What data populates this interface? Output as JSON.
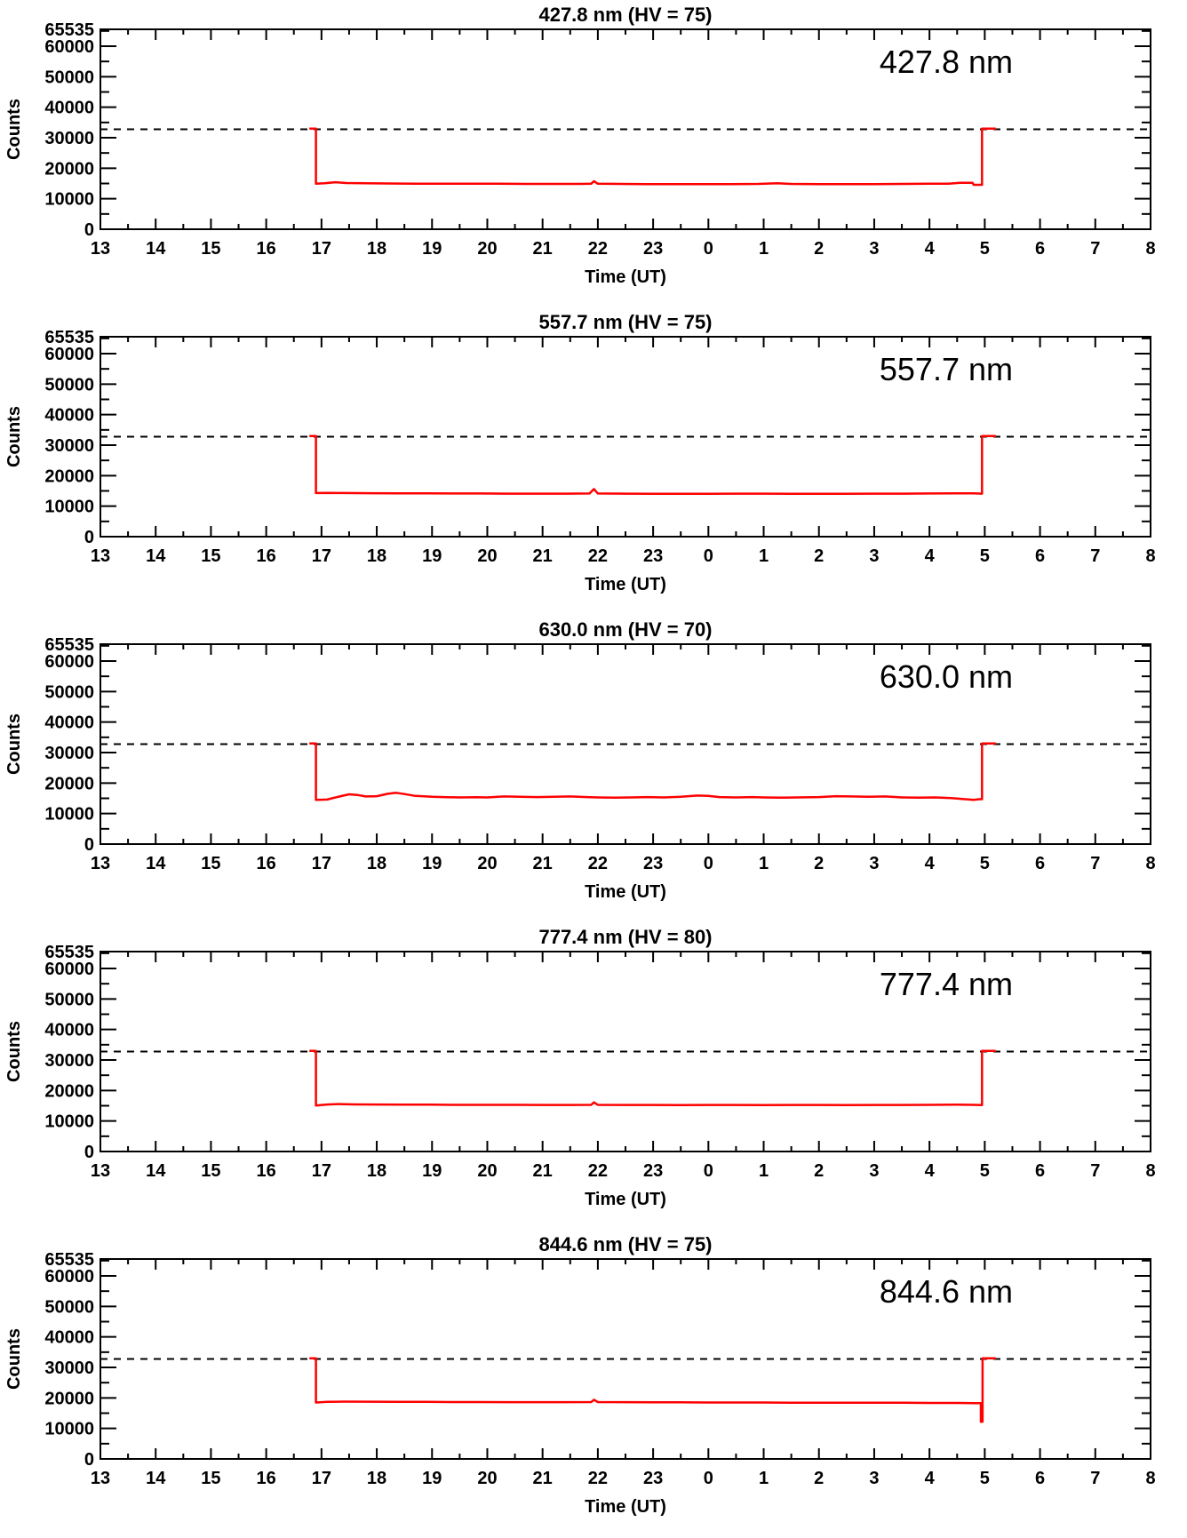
{
  "colors": {
    "trace": "#ff0000",
    "axis": "#000000",
    "dashed_line": "#000000",
    "background": "#ffffff"
  },
  "axes": {
    "x": {
      "label": "Time (UT)",
      "start_hour": 13,
      "end_hour": 32,
      "tick_labels": [
        "13",
        "14",
        "15",
        "16",
        "17",
        "18",
        "19",
        "20",
        "21",
        "22",
        "23",
        "0",
        "1",
        "2",
        "3",
        "4",
        "5",
        "6",
        "7",
        "8"
      ],
      "minor_step_hours": 0.5
    },
    "y": {
      "label": "Counts",
      "min": 0,
      "max": 65535,
      "major_values": [
        0,
        10000,
        20000,
        30000,
        40000,
        50000,
        60000,
        65535
      ],
      "major_labels": [
        "0",
        "10000",
        "20000",
        "30000",
        "40000",
        "50000",
        "60000",
        "65535"
      ],
      "minor_step": 5000
    },
    "dashed_line_value": 32768
  },
  "chart_data": [
    {
      "type": "line",
      "title": "427.8 nm (HV = 75)",
      "inplot_label": "427.8 nm",
      "wavelength_nm": 427.8,
      "hv": 75,
      "xlabel": "Time (UT)",
      "ylabel": "Counts",
      "ylim": [
        0,
        65535
      ],
      "series": [
        {
          "name": "counts",
          "points": [
            [
              16.78,
              33000
            ],
            [
              16.9,
              33000
            ],
            [
              16.9,
              14900
            ],
            [
              17.05,
              15050
            ],
            [
              17.25,
              15400
            ],
            [
              17.45,
              15150
            ],
            [
              17.8,
              15050
            ],
            [
              18.2,
              15000
            ],
            [
              18.7,
              14950
            ],
            [
              19.2,
              14950
            ],
            [
              19.7,
              14900
            ],
            [
              20.2,
              14900
            ],
            [
              20.7,
              14850
            ],
            [
              21.2,
              14850
            ],
            [
              21.7,
              14850
            ],
            [
              21.88,
              14900
            ],
            [
              21.93,
              15750
            ],
            [
              22.0,
              14900
            ],
            [
              22.4,
              14850
            ],
            [
              22.9,
              14800
            ],
            [
              23.4,
              14800
            ],
            [
              23.9,
              14800
            ],
            [
              24.4,
              14800
            ],
            [
              24.9,
              14850
            ],
            [
              25.25,
              15050
            ],
            [
              25.5,
              14850
            ],
            [
              26.0,
              14800
            ],
            [
              26.5,
              14800
            ],
            [
              27.0,
              14800
            ],
            [
              27.5,
              14850
            ],
            [
              28.0,
              14900
            ],
            [
              28.35,
              14950
            ],
            [
              28.55,
              15200
            ],
            [
              28.78,
              15200
            ],
            [
              28.8,
              14550
            ],
            [
              28.95,
              14550
            ],
            [
              28.95,
              33000
            ],
            [
              29.2,
              33000
            ]
          ]
        }
      ]
    },
    {
      "type": "line",
      "title": "557.7 nm (HV = 75)",
      "inplot_label": "557.7 nm",
      "wavelength_nm": 557.7,
      "hv": 75,
      "xlabel": "Time (UT)",
      "ylabel": "Counts",
      "ylim": [
        0,
        65535
      ],
      "series": [
        {
          "name": "counts",
          "points": [
            [
              16.78,
              33000
            ],
            [
              16.9,
              33000
            ],
            [
              16.9,
              14300
            ],
            [
              17.1,
              14350
            ],
            [
              17.4,
              14300
            ],
            [
              17.9,
              14250
            ],
            [
              18.4,
              14200
            ],
            [
              18.9,
              14200
            ],
            [
              19.4,
              14150
            ],
            [
              19.9,
              14150
            ],
            [
              20.4,
              14100
            ],
            [
              20.9,
              14100
            ],
            [
              21.4,
              14100
            ],
            [
              21.85,
              14150
            ],
            [
              21.93,
              15600
            ],
            [
              22.0,
              14150
            ],
            [
              22.5,
              14100
            ],
            [
              23.0,
              14050
            ],
            [
              23.5,
              14050
            ],
            [
              24.0,
              14050
            ],
            [
              24.5,
              14100
            ],
            [
              25.0,
              14100
            ],
            [
              25.5,
              14050
            ],
            [
              26.0,
              14050
            ],
            [
              26.5,
              14050
            ],
            [
              27.0,
              14100
            ],
            [
              27.5,
              14100
            ],
            [
              28.0,
              14150
            ],
            [
              28.5,
              14200
            ],
            [
              28.8,
              14200
            ],
            [
              28.95,
              14100
            ],
            [
              28.95,
              33000
            ],
            [
              29.2,
              33000
            ]
          ]
        }
      ]
    },
    {
      "type": "line",
      "title": "630.0 nm (HV = 70)",
      "inplot_label": "630.0 nm",
      "wavelength_nm": 630.0,
      "hv": 70,
      "xlabel": "Time (UT)",
      "ylabel": "Counts",
      "ylim": [
        0,
        65535
      ],
      "series": [
        {
          "name": "counts",
          "points": [
            [
              16.78,
              33000
            ],
            [
              16.9,
              33000
            ],
            [
              16.9,
              14500
            ],
            [
              17.1,
              14600
            ],
            [
              17.3,
              15500
            ],
            [
              17.5,
              16300
            ],
            [
              17.65,
              16100
            ],
            [
              17.8,
              15600
            ],
            [
              18.0,
              15700
            ],
            [
              18.2,
              16500
            ],
            [
              18.35,
              16800
            ],
            [
              18.5,
              16400
            ],
            [
              18.7,
              15800
            ],
            [
              18.9,
              15600
            ],
            [
              19.0,
              15500
            ],
            [
              19.2,
              15400
            ],
            [
              19.5,
              15300
            ],
            [
              19.8,
              15350
            ],
            [
              20.0,
              15300
            ],
            [
              20.3,
              15600
            ],
            [
              20.6,
              15500
            ],
            [
              20.9,
              15400
            ],
            [
              21.2,
              15500
            ],
            [
              21.5,
              15600
            ],
            [
              21.8,
              15400
            ],
            [
              22.0,
              15300
            ],
            [
              22.3,
              15200
            ],
            [
              22.6,
              15300
            ],
            [
              22.9,
              15400
            ],
            [
              23.2,
              15300
            ],
            [
              23.5,
              15500
            ],
            [
              23.8,
              15900
            ],
            [
              24.0,
              15800
            ],
            [
              24.2,
              15400
            ],
            [
              24.5,
              15300
            ],
            [
              24.8,
              15400
            ],
            [
              25.0,
              15300
            ],
            [
              25.3,
              15200
            ],
            [
              25.6,
              15300
            ],
            [
              26.0,
              15400
            ],
            [
              26.3,
              15700
            ],
            [
              26.6,
              15600
            ],
            [
              26.9,
              15500
            ],
            [
              27.2,
              15600
            ],
            [
              27.5,
              15300
            ],
            [
              27.8,
              15200
            ],
            [
              28.1,
              15300
            ],
            [
              28.4,
              15100
            ],
            [
              28.6,
              14800
            ],
            [
              28.8,
              14500
            ],
            [
              28.9,
              14700
            ],
            [
              28.95,
              14700
            ],
            [
              28.95,
              33000
            ],
            [
              29.2,
              33000
            ]
          ]
        }
      ]
    },
    {
      "type": "line",
      "title": "777.4 nm (HV = 80)",
      "inplot_label": "777.4 nm",
      "wavelength_nm": 777.4,
      "hv": 80,
      "xlabel": "Time (UT)",
      "ylabel": "Counts",
      "ylim": [
        0,
        65535
      ],
      "series": [
        {
          "name": "counts",
          "points": [
            [
              16.78,
              33000
            ],
            [
              16.9,
              33000
            ],
            [
              16.9,
              15100
            ],
            [
              17.1,
              15400
            ],
            [
              17.3,
              15550
            ],
            [
              17.6,
              15450
            ],
            [
              18.0,
              15400
            ],
            [
              18.5,
              15350
            ],
            [
              19.0,
              15350
            ],
            [
              19.5,
              15300
            ],
            [
              20.0,
              15300
            ],
            [
              20.5,
              15300
            ],
            [
              21.0,
              15250
            ],
            [
              21.5,
              15250
            ],
            [
              21.88,
              15300
            ],
            [
              21.93,
              16100
            ],
            [
              22.0,
              15300
            ],
            [
              22.5,
              15250
            ],
            [
              23.0,
              15250
            ],
            [
              23.5,
              15200
            ],
            [
              24.0,
              15250
            ],
            [
              24.5,
              15250
            ],
            [
              25.0,
              15200
            ],
            [
              25.5,
              15250
            ],
            [
              26.0,
              15250
            ],
            [
              26.5,
              15200
            ],
            [
              27.0,
              15250
            ],
            [
              27.5,
              15250
            ],
            [
              28.0,
              15300
            ],
            [
              28.5,
              15350
            ],
            [
              28.8,
              15300
            ],
            [
              28.95,
              15200
            ],
            [
              28.95,
              33000
            ],
            [
              29.2,
              33000
            ]
          ]
        }
      ]
    },
    {
      "type": "line",
      "title": "844.6 nm (HV = 75)",
      "inplot_label": "844.6 nm",
      "wavelength_nm": 844.6,
      "hv": 75,
      "xlabel": "Time (UT)",
      "ylabel": "Counts",
      "ylim": [
        0,
        65535
      ],
      "series": [
        {
          "name": "counts",
          "points": [
            [
              16.78,
              33000
            ],
            [
              16.9,
              33000
            ],
            [
              16.9,
              18500
            ],
            [
              17.1,
              18700
            ],
            [
              17.4,
              18800
            ],
            [
              17.9,
              18750
            ],
            [
              18.4,
              18700
            ],
            [
              18.9,
              18700
            ],
            [
              19.4,
              18650
            ],
            [
              19.9,
              18650
            ],
            [
              20.4,
              18600
            ],
            [
              20.9,
              18600
            ],
            [
              21.4,
              18600
            ],
            [
              21.88,
              18650
            ],
            [
              21.93,
              19400
            ],
            [
              22.0,
              18650
            ],
            [
              22.5,
              18600
            ],
            [
              23.0,
              18550
            ],
            [
              23.5,
              18550
            ],
            [
              24.0,
              18500
            ],
            [
              24.5,
              18500
            ],
            [
              25.0,
              18500
            ],
            [
              25.5,
              18450
            ],
            [
              26.0,
              18450
            ],
            [
              26.5,
              18400
            ],
            [
              27.0,
              18400
            ],
            [
              27.5,
              18400
            ],
            [
              28.0,
              18350
            ],
            [
              28.5,
              18350
            ],
            [
              28.8,
              18300
            ],
            [
              28.93,
              18300
            ],
            [
              28.93,
              12200
            ],
            [
              28.96,
              12200
            ],
            [
              28.96,
              33000
            ],
            [
              29.2,
              33000
            ]
          ]
        }
      ]
    }
  ]
}
